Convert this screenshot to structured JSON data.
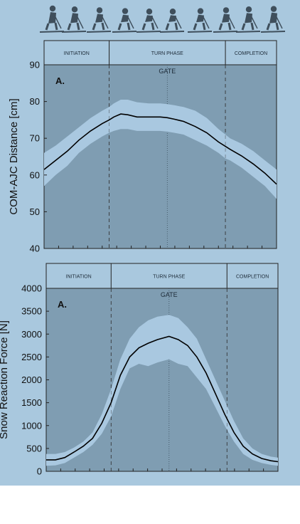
{
  "colors": {
    "figure_background": "#a9c8de",
    "plot_background": "#7f9db2",
    "band": "#a9c8e0",
    "mean_line": "#000000",
    "skier_silhouettes": "#3f4f5c"
  },
  "icons": [
    "skier-sequence-icon"
  ],
  "chart_data": [
    {
      "type": "line",
      "panel_label": "A.",
      "ylabel": "COM-AJC Distance [cm]",
      "ylim": [
        40,
        90
      ],
      "yticks": [
        "40",
        "50",
        "60",
        "70",
        "80",
        "90"
      ],
      "x_range": [
        0,
        100
      ],
      "x_tick_count": 16,
      "phases": [
        {
          "label": "INITIATION",
          "start": 0,
          "end": 28
        },
        {
          "label": "TURN PHASE",
          "start": 28,
          "end": 78
        },
        {
          "label": "COMPLETION",
          "start": 78,
          "end": 100
        }
      ],
      "gate": {
        "label": "GATE",
        "x": 53
      },
      "series": [
        {
          "role": "mean",
          "x": [
            0,
            5,
            10,
            15,
            20,
            25,
            28,
            30,
            33,
            36,
            40,
            45,
            50,
            53,
            56,
            60,
            65,
            70,
            75,
            78,
            80,
            85,
            90,
            95,
            100
          ],
          "y": [
            61.5,
            64,
            66.5,
            69.5,
            72,
            74,
            75,
            75.8,
            76.6,
            76.4,
            75.8,
            75.8,
            75.8,
            75.6,
            75.2,
            74.6,
            73.2,
            71.5,
            69,
            67.8,
            67,
            65.2,
            63,
            60.5,
            57.5
          ]
        },
        {
          "role": "upper",
          "x": [
            0,
            5,
            10,
            15,
            20,
            25,
            28,
            30,
            33,
            36,
            40,
            45,
            50,
            53,
            56,
            60,
            65,
            70,
            75,
            78,
            80,
            85,
            90,
            95,
            100
          ],
          "y": [
            66,
            68,
            70.5,
            73,
            75.5,
            77.5,
            78.5,
            79.5,
            80.5,
            80.5,
            79.8,
            79.5,
            79.5,
            79.3,
            79,
            78.5,
            77.5,
            75.5,
            72.5,
            71,
            70,
            68.5,
            66.5,
            64,
            61.5
          ]
        },
        {
          "role": "lower",
          "x": [
            0,
            5,
            10,
            15,
            20,
            25,
            28,
            30,
            33,
            36,
            40,
            45,
            50,
            53,
            56,
            60,
            65,
            70,
            75,
            78,
            80,
            85,
            90,
            95,
            100
          ],
          "y": [
            57,
            60,
            62.5,
            66,
            68.5,
            70.5,
            71.5,
            72,
            72.5,
            72.5,
            72,
            72,
            72,
            71.8,
            71.5,
            71,
            69.5,
            68,
            66,
            64.5,
            64,
            62,
            59.5,
            57,
            53.5
          ]
        }
      ]
    },
    {
      "type": "line",
      "panel_label": "A.",
      "ylabel": "Snow Reaction Force [N]",
      "ylim": [
        0,
        4000
      ],
      "yticks": [
        "0",
        "500",
        "1000",
        "1500",
        "2000",
        "2500",
        "3000",
        "3500",
        "4000"
      ],
      "x_range": [
        0,
        100
      ],
      "x_tick_count": 16,
      "phases": [
        {
          "label": "INITIATION",
          "start": 0,
          "end": 28
        },
        {
          "label": "TURN PHASE",
          "start": 28,
          "end": 78
        },
        {
          "label": "COMPLETION",
          "start": 78,
          "end": 100
        }
      ],
      "gate": {
        "label": "GATE",
        "x": 53
      },
      "series": [
        {
          "role": "mean",
          "x": [
            0,
            4,
            8,
            12,
            16,
            20,
            24,
            28,
            32,
            36,
            40,
            44,
            48,
            53,
            57,
            61,
            65,
            69,
            73,
            77,
            81,
            85,
            89,
            93,
            97,
            100
          ],
          "y": [
            250,
            250,
            300,
            420,
            550,
            720,
            1050,
            1500,
            2100,
            2500,
            2700,
            2800,
            2880,
            2950,
            2880,
            2750,
            2500,
            2150,
            1700,
            1250,
            850,
            550,
            380,
            280,
            230,
            210
          ],
          "note_range": ""
        },
        {
          "role": "upper",
          "x": [
            0,
            4,
            8,
            12,
            16,
            20,
            24,
            28,
            32,
            36,
            40,
            44,
            48,
            53,
            57,
            61,
            65,
            69,
            73,
            77,
            81,
            85,
            89,
            93,
            97,
            100
          ],
          "y": [
            380,
            380,
            420,
            520,
            650,
            850,
            1250,
            1800,
            2450,
            2900,
            3150,
            3300,
            3380,
            3420,
            3350,
            3150,
            2900,
            2450,
            2000,
            1550,
            1100,
            720,
            500,
            380,
            320,
            300
          ]
        },
        {
          "role": "lower",
          "x": [
            0,
            4,
            8,
            12,
            16,
            20,
            24,
            28,
            32,
            36,
            40,
            44,
            48,
            53,
            57,
            61,
            65,
            69,
            73,
            77,
            81,
            85,
            89,
            93,
            97,
            100
          ],
          "y": [
            120,
            130,
            180,
            300,
            420,
            580,
            820,
            1200,
            1800,
            2250,
            2350,
            2300,
            2380,
            2450,
            2350,
            2300,
            2050,
            1800,
            1400,
            1000,
            650,
            380,
            250,
            180,
            140,
            120
          ]
        }
      ]
    }
  ]
}
